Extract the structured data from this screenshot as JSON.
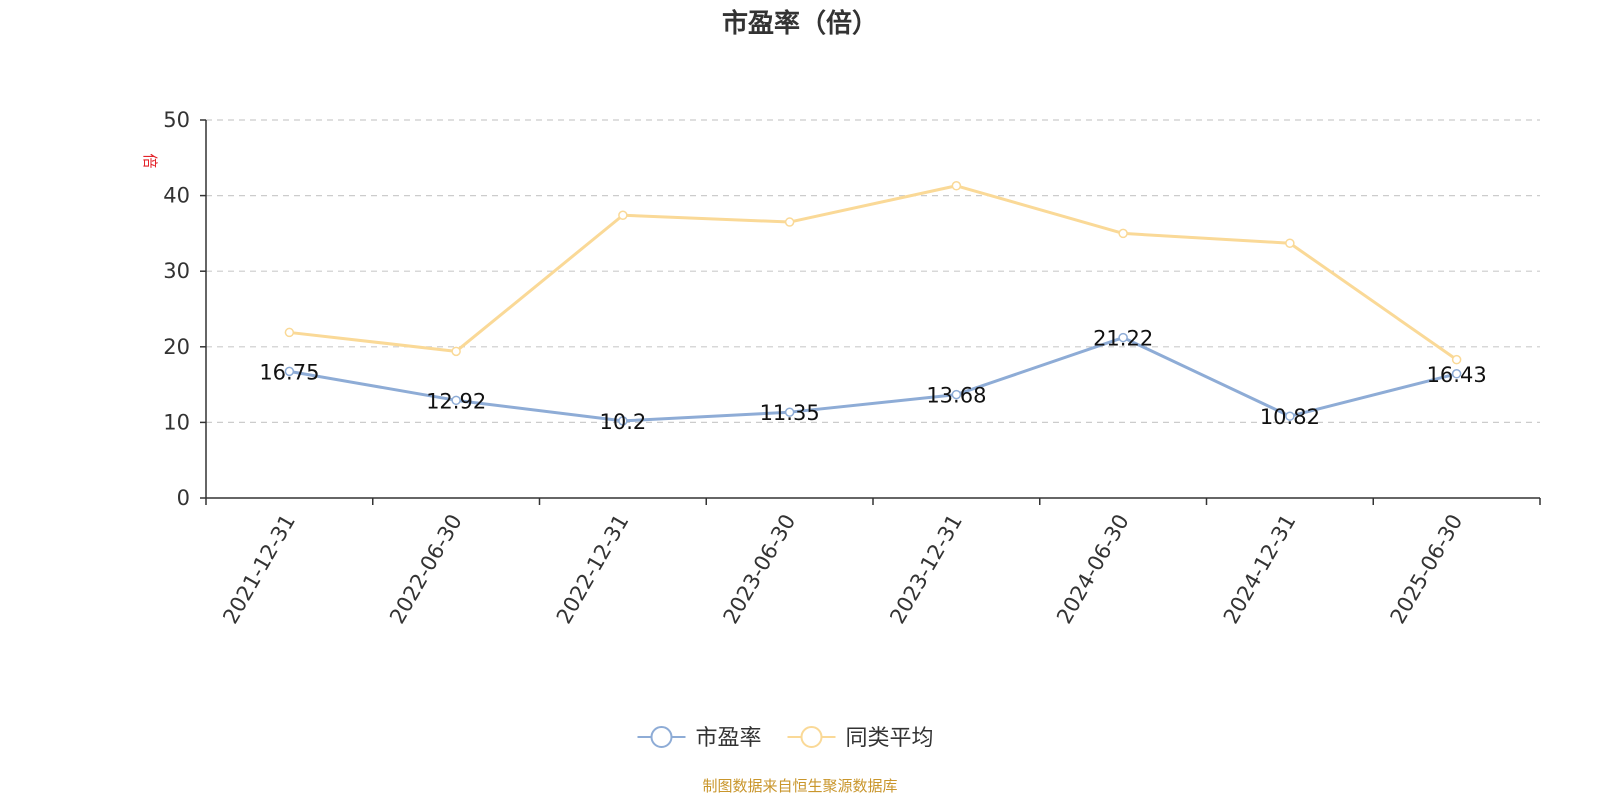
{
  "chart_data": {
    "type": "line",
    "title": "市盈率（倍）",
    "unit_label": "倍",
    "categories": [
      "2021-12-31",
      "2022-06-30",
      "2022-12-31",
      "2023-06-30",
      "2023-12-31",
      "2024-06-30",
      "2024-12-31",
      "2025-06-30"
    ],
    "ylim": [
      0,
      50
    ],
    "yticks": [
      0,
      10,
      20,
      30,
      40,
      50
    ],
    "grid": true,
    "legend_position": "bottom",
    "series": [
      {
        "name": "市盈率",
        "color": "#8eacd6",
        "show_labels": true,
        "values": [
          16.75,
          12.92,
          10.2,
          11.35,
          13.68,
          21.22,
          10.82,
          16.43
        ]
      },
      {
        "name": "同类平均",
        "color": "#fad997",
        "show_labels": false,
        "values": [
          21.9,
          19.4,
          37.4,
          36.5,
          41.3,
          35.0,
          33.7,
          18.3
        ]
      }
    ],
    "source": "制图数据来自恒生聚源数据库"
  }
}
